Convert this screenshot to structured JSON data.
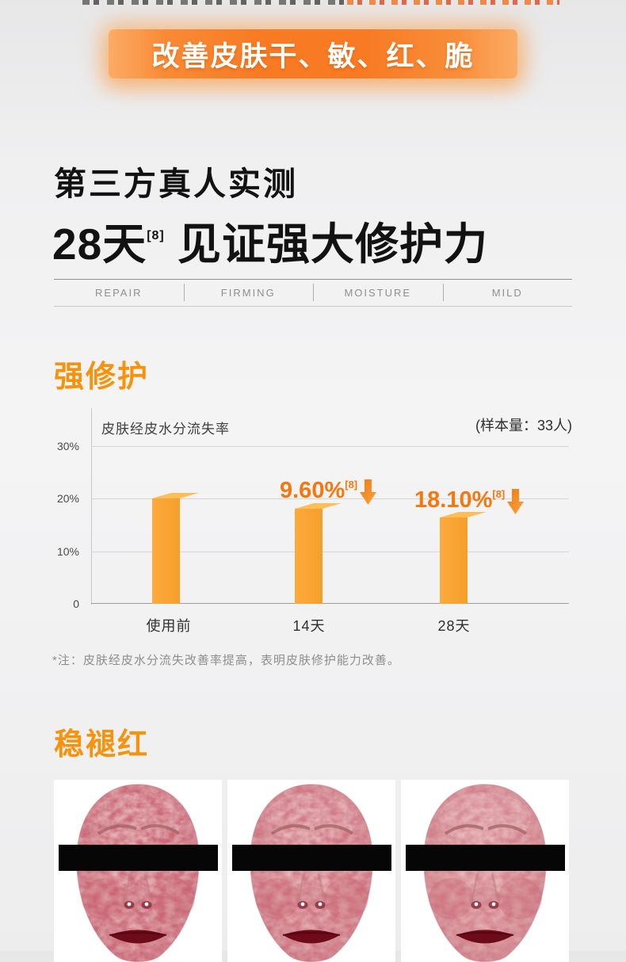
{
  "banner": {
    "text": "改善皮肤干、敏、红、脆"
  },
  "headline": {
    "line1": "第三方真人实测",
    "line2_prefix": "28天",
    "line2_sup": "[8]",
    "line2_rest": " 见证强大修护力"
  },
  "feature_strip": {
    "items": [
      "REPAIR",
      "FIRMING",
      "MOISTURE",
      "MILD"
    ]
  },
  "section_repair": {
    "title": "强修护"
  },
  "section_redness": {
    "title": "稳褪红"
  },
  "chart_data": {
    "type": "bar",
    "title": "皮肤经皮水分流失率",
    "sample_note": "(样本量：33人)",
    "categories": [
      "使用前",
      "14天",
      "28天"
    ],
    "values": [
      20.0,
      18.1,
      16.4
    ],
    "unit": "%",
    "yticks": [
      {
        "label": "30%",
        "value": 30
      },
      {
        "label": "20%",
        "value": 20
      },
      {
        "label": "10%",
        "value": 10
      },
      {
        "label": "0",
        "value": 0
      }
    ],
    "ylim": [
      0,
      32
    ],
    "grid": true,
    "annotations": [
      {
        "category": "14天",
        "label": "9.60%",
        "sup": "[8]",
        "direction": "down"
      },
      {
        "category": "28天",
        "label": "18.10%",
        "sup": "[8]",
        "direction": "down"
      }
    ]
  },
  "note": "*注：皮肤经皮水分流失改善率提高，表明皮肤修护能力改善。",
  "colors": {
    "accent": "#f7920b",
    "banner_orange": "#f87a23",
    "bar_front": "#f6a02c",
    "bar_top": "#ffbe58",
    "annotation": "#f4770f"
  }
}
